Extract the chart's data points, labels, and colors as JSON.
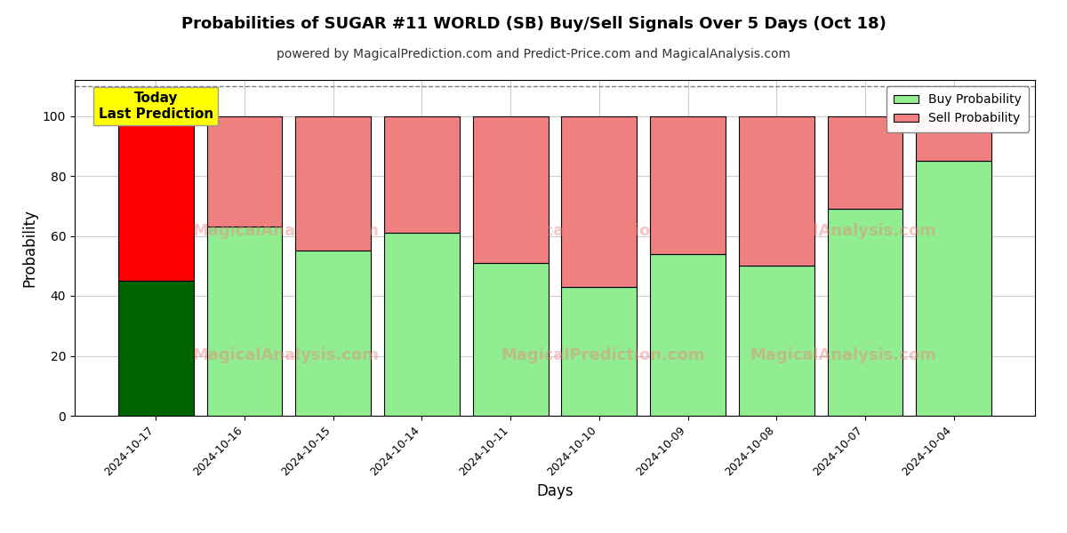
{
  "title": "Probabilities of SUGAR #11 WORLD (SB) Buy/Sell Signals Over 5 Days (Oct 18)",
  "subtitle": "powered by MagicalPrediction.com and Predict-Price.com and MagicalAnalysis.com",
  "xlabel": "Days",
  "ylabel": "Probability",
  "categories": [
    "2024-10-17",
    "2024-10-16",
    "2024-10-15",
    "2024-10-14",
    "2024-10-11",
    "2024-10-10",
    "2024-10-09",
    "2024-10-08",
    "2024-10-07",
    "2024-10-04"
  ],
  "buy_values": [
    45,
    63,
    55,
    61,
    51,
    43,
    54,
    50,
    69,
    85
  ],
  "sell_values": [
    55,
    37,
    45,
    39,
    49,
    57,
    46,
    50,
    31,
    15
  ],
  "today_buy_color": "#006400",
  "today_sell_color": "#ff0000",
  "buy_color": "#90EE90",
  "sell_color": "#F08080",
  "today_label_bg": "#ffff00",
  "today_label_text": "Today\nLast Prediction",
  "legend_buy": "Buy Probability",
  "legend_sell": "Sell Probability",
  "ylim": [
    0,
    112
  ],
  "dashed_line_y": 110,
  "background_color": "#ffffff",
  "grid_color": "#cccccc",
  "watermark1": "MagicalAnalysis.com",
  "watermark2": "MagicalPrediction.com"
}
